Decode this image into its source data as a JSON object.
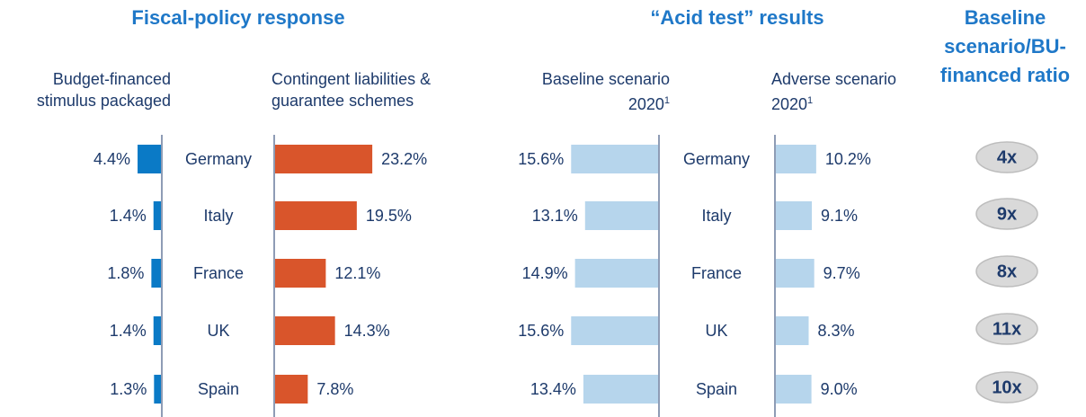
{
  "groups": [
    {
      "title": "Fiscal-policy response"
    },
    {
      "title": "“Acid test” results"
    }
  ],
  "chart_data": [
    {
      "type": "bar",
      "orientation": "horizontal",
      "direction": "left",
      "title": "Budget-financed stimulus packaged",
      "categories": [
        "Germany",
        "Italy",
        "France",
        "UK",
        "Spain"
      ],
      "values": [
        4.4,
        1.4,
        1.8,
        1.4,
        1.3
      ],
      "value_labels": [
        "4.4%",
        "1.4%",
        "1.8%",
        "1.4%",
        "1.3%"
      ],
      "color": "#0a7ac6",
      "xlim": [
        0,
        30
      ]
    },
    {
      "type": "bar",
      "orientation": "horizontal",
      "direction": "right",
      "title": "Contingent liabilities & guarantee schemes",
      "values": [
        23.2,
        19.5,
        12.1,
        14.3,
        7.8
      ],
      "value_labels": [
        "23.2%",
        "19.5%",
        "12.1%",
        "14.3%",
        "7.8%"
      ],
      "color": "#d9552b",
      "xlim": [
        0,
        25
      ]
    },
    {
      "type": "bar",
      "orientation": "horizontal",
      "direction": "left",
      "title": "Baseline scenario 2020",
      "title_note": "1",
      "categories": [
        "Germany",
        "Italy",
        "France",
        "UK",
        "Spain"
      ],
      "values": [
        15.6,
        13.1,
        14.9,
        15.6,
        13.4
      ],
      "value_labels": [
        "15.6%",
        "13.1%",
        "14.9%",
        "15.6%",
        "13.4%"
      ],
      "color": "#b6d5ec",
      "xlim": [
        0,
        20
      ]
    },
    {
      "type": "bar",
      "orientation": "horizontal",
      "direction": "right",
      "title": "Adverse scenario 2020",
      "title_note": "1",
      "values": [
        10.2,
        9.1,
        9.7,
        8.3,
        9
      ],
      "value_labels": [
        "10.2%",
        "9.1%",
        "9.7%",
        "8.3%",
        "9.0%"
      ],
      "color": "#b6d5ec",
      "xlim": [
        0,
        20
      ]
    }
  ],
  "ratio": {
    "title": "Baseline scenario/BU-financed ratio",
    "values": [
      4,
      9,
      8,
      11,
      10
    ],
    "value_labels": [
      "4x",
      "9x",
      "8x",
      "11x",
      "10x"
    ]
  }
}
